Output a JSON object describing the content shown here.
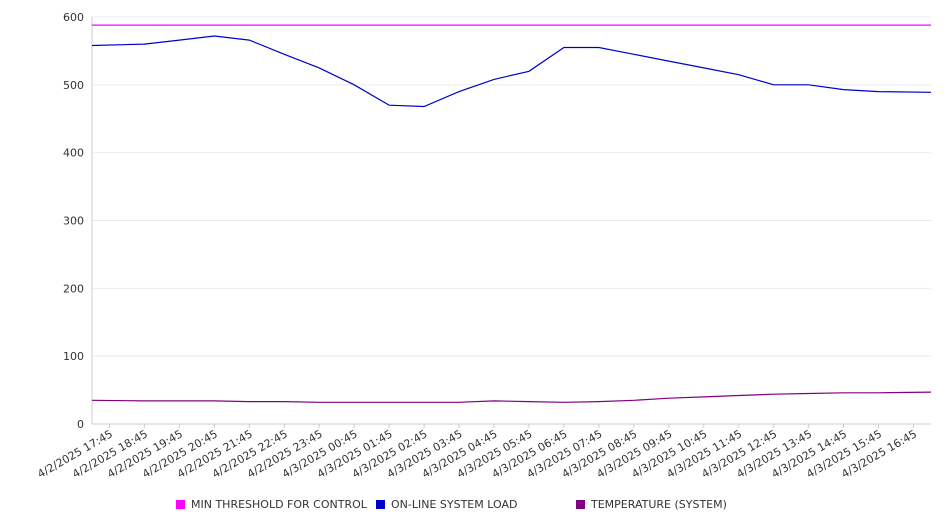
{
  "chart_data": {
    "type": "line",
    "title": "",
    "xlabel": "",
    "ylabel": "",
    "ylim": [
      0,
      600
    ],
    "yticks": [
      0,
      100,
      200,
      300,
      400,
      500,
      600
    ],
    "grid": "horizontal",
    "legend_position": "bottom",
    "x": [
      "4/2/2025 17:45",
      "4/2/2025 18:45",
      "4/2/2025 19:45",
      "4/2/2025 20:45",
      "4/2/2025 21:45",
      "4/2/2025 22:45",
      "4/2/2025 23:45",
      "4/3/2025 00:45",
      "4/3/2025 01:45",
      "4/3/2025 02:45",
      "4/3/2025 03:45",
      "4/3/2025 04:45",
      "4/3/2025 05:45",
      "4/3/2025 06:45",
      "4/3/2025 07:45",
      "4/3/2025 08:45",
      "4/3/2025 09:45",
      "4/3/2025 10:45",
      "4/3/2025 11:45",
      "4/3/2025 12:45",
      "4/3/2025 13:45",
      "4/3/2025 14:45",
      "4/3/2025 15:45",
      "4/3/2025 16:45"
    ],
    "series": [
      {
        "name": "MIN THRESHOLD FOR CONTROL",
        "color": "#ff00ff",
        "values": [
          588,
          588,
          588,
          588,
          588,
          588,
          588,
          588,
          588,
          588,
          588,
          588,
          588,
          588,
          588,
          588,
          588,
          588,
          588,
          588,
          588,
          588,
          588,
          588
        ]
      },
      {
        "name": "ON-LINE SYSTEM LOAD",
        "color": "#0000cc",
        "values": [
          558,
          560,
          566,
          572,
          566,
          545,
          525,
          500,
          470,
          468,
          490,
          508,
          520,
          555,
          555,
          545,
          535,
          525,
          515,
          500,
          500,
          493,
          490,
          489
        ]
      },
      {
        "name": "TEMPERATURE (SYSTEM)",
        "color": "#800080",
        "values": [
          35,
          34,
          34,
          34,
          33,
          33,
          32,
          32,
          32,
          32,
          32,
          34,
          33,
          32,
          33,
          35,
          38,
          40,
          42,
          44,
          45,
          46,
          46,
          47
        ]
      }
    ]
  }
}
